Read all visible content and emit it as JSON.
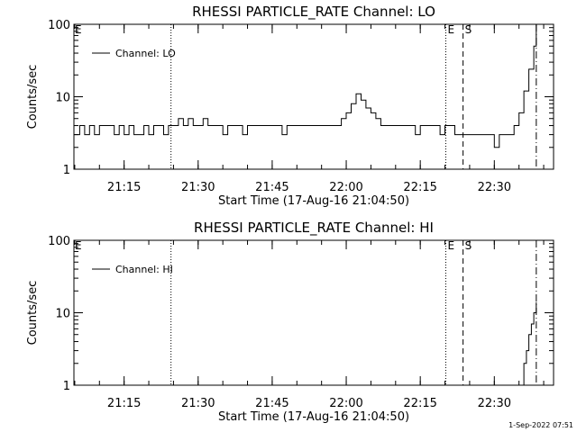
{
  "footer_timestamp": "1-Sep-2022 07:51",
  "chart_data": [
    {
      "type": "line",
      "title": "RHESSI PARTICLE_RATE Channel: LO",
      "xlabel": "Start Time (17-Aug-16 21:04:50)",
      "ylabel": "Counts/sec",
      "y_scale": "log",
      "ylim": [
        1,
        100
      ],
      "y_ticks": [
        "1",
        "10",
        "100"
      ],
      "xlim": [
        "21:04:50",
        "22:42:00"
      ],
      "x_ticks": [
        "21:15",
        "21:30",
        "21:45",
        "22:00",
        "22:15",
        "22:30"
      ],
      "legend": {
        "position": "top-left",
        "entries": [
          "Channel: LO"
        ]
      },
      "markers": [
        {
          "label": "",
          "time": "21:24:30",
          "style": "dotted"
        },
        {
          "label": "E",
          "time": "22:20:10",
          "style": "dotted"
        },
        {
          "label": "S",
          "time": "22:23:40",
          "style": "dashed"
        },
        {
          "label": "",
          "time": "22:38:30",
          "style": "dashdot"
        }
      ],
      "series": [
        {
          "name": "Channel: LO",
          "x": [
            "21:04:50",
            "21:06:00",
            "21:07:00",
            "21:08:00",
            "21:09:00",
            "21:10:00",
            "21:11:00",
            "21:12:00",
            "21:13:00",
            "21:14:00",
            "21:15:00",
            "21:16:00",
            "21:17:00",
            "21:18:00",
            "21:19:00",
            "21:20:00",
            "21:21:00",
            "21:22:00",
            "21:23:00",
            "21:24:00",
            "21:25:00",
            "21:26:00",
            "21:27:00",
            "21:28:00",
            "21:29:00",
            "21:30:00",
            "21:31:00",
            "21:32:00",
            "21:33:00",
            "21:34:00",
            "21:35:00",
            "21:36:00",
            "21:37:00",
            "21:38:00",
            "21:39:00",
            "21:40:00",
            "21:41:00",
            "21:42:00",
            "21:43:00",
            "21:44:00",
            "21:45:00",
            "21:46:00",
            "21:47:00",
            "21:48:00",
            "21:49:00",
            "21:50:00",
            "21:51:00",
            "21:52:00",
            "21:53:00",
            "21:54:00",
            "21:55:00",
            "21:56:00",
            "21:57:00",
            "21:58:00",
            "21:59:00",
            "22:00:00",
            "22:01:00",
            "22:02:00",
            "22:03:00",
            "22:04:00",
            "22:05:00",
            "22:06:00",
            "22:07:00",
            "22:08:00",
            "22:09:00",
            "22:10:00",
            "22:11:00",
            "22:12:00",
            "22:13:00",
            "22:14:00",
            "22:15:00",
            "22:16:00",
            "22:17:00",
            "22:18:00",
            "22:19:00",
            "22:20:00",
            "22:21:00",
            "22:22:00",
            "22:23:00",
            "22:24:00",
            "22:25:00",
            "22:26:00",
            "22:27:00",
            "22:28:00",
            "22:29:00",
            "22:30:00",
            "22:31:00",
            "22:32:00",
            "22:33:00",
            "22:34:00",
            "22:35:00",
            "22:36:00",
            "22:37:00",
            "22:38:00",
            "22:38:30"
          ],
          "values": [
            3,
            4,
            3,
            4,
            3,
            4,
            4,
            4,
            3,
            4,
            3,
            4,
            3,
            3,
            4,
            3,
            4,
            4,
            3,
            4,
            4,
            5,
            4,
            5,
            4,
            4,
            5,
            4,
            4,
            4,
            3,
            4,
            4,
            4,
            3,
            4,
            4,
            4,
            4,
            4,
            4,
            4,
            3,
            4,
            4,
            4,
            4,
            4,
            4,
            4,
            4,
            4,
            4,
            4,
            5,
            6,
            8,
            11,
            9,
            7,
            6,
            5,
            4,
            4,
            4,
            4,
            4,
            4,
            4,
            3,
            4,
            4,
            4,
            4,
            3,
            4,
            4,
            3,
            3,
            3,
            3,
            3,
            3,
            3,
            3,
            2,
            3,
            3,
            3,
            4,
            6,
            12,
            24,
            50,
            100
          ]
        }
      ]
    },
    {
      "type": "line",
      "title": "RHESSI PARTICLE_RATE Channel: HI",
      "xlabel": "Start Time (17-Aug-16 21:04:50)",
      "ylabel": "Counts/sec",
      "y_scale": "log",
      "ylim": [
        1,
        100
      ],
      "y_ticks": [
        "1",
        "10",
        "100"
      ],
      "xlim": [
        "21:04:50",
        "22:42:00"
      ],
      "x_ticks": [
        "21:15",
        "21:30",
        "21:45",
        "22:00",
        "22:15",
        "22:30"
      ],
      "legend": {
        "position": "top-left",
        "entries": [
          "Channel: HI"
        ]
      },
      "markers": [
        {
          "label": "",
          "time": "21:24:30",
          "style": "dotted"
        },
        {
          "label": "E",
          "time": "22:20:10",
          "style": "dotted"
        },
        {
          "label": "S",
          "time": "22:23:40",
          "style": "dashed"
        },
        {
          "label": "",
          "time": "22:38:30",
          "style": "dashdot"
        }
      ],
      "series": [
        {
          "name": "Channel: HI",
          "x": [
            "22:35:40",
            "22:36:00",
            "22:36:30",
            "22:37:00",
            "22:37:30",
            "22:38:00",
            "22:38:30"
          ],
          "values": [
            1,
            2,
            3,
            5,
            7,
            10,
            14
          ]
        }
      ]
    }
  ]
}
